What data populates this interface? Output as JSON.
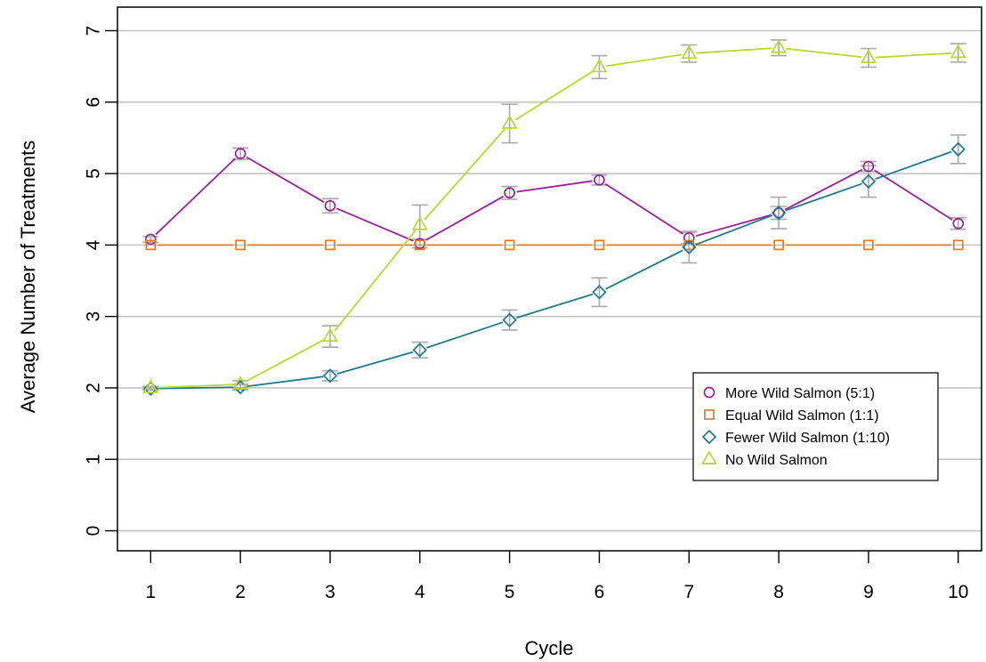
{
  "chart_data": {
    "type": "line",
    "xlabel": "Cycle",
    "ylabel": "Average Number of Treatments",
    "x": [
      1,
      2,
      3,
      4,
      5,
      6,
      7,
      8,
      9,
      10
    ],
    "xlim": [
      0.63,
      10.26
    ],
    "ylim": [
      -0.28,
      7.33
    ],
    "yticks": [
      0,
      1,
      2,
      3,
      4,
      5,
      6,
      7
    ],
    "grid": "horizontal",
    "legend_position": "lower-right",
    "error_bar_color": "#aaaaaa",
    "series": [
      {
        "name": "More Wild Salmon (5:1)",
        "marker": "circle",
        "color": "#9b1f9b",
        "values": [
          4.08,
          5.28,
          4.55,
          4.02,
          4.73,
          4.91,
          4.1,
          4.45,
          5.1,
          4.3
        ],
        "errors": [
          0.04,
          0.08,
          0.1,
          0.06,
          0.09,
          0.07,
          0.08,
          0.09,
          0.07,
          0.08
        ]
      },
      {
        "name": "Equal Wild Salmon (1:1)",
        "marker": "square",
        "color": "#e07b27",
        "values": [
          4,
          4,
          4,
          4,
          4,
          4,
          4,
          4,
          4,
          4
        ],
        "errors": [
          0,
          0,
          0,
          0,
          0,
          0,
          0,
          0,
          0,
          0
        ]
      },
      {
        "name": "Fewer Wild Salmon (1:10)",
        "marker": "diamond",
        "color": "#1e7a8c",
        "values": [
          1.99,
          2.01,
          2.17,
          2.53,
          2.95,
          3.34,
          3.97,
          4.45,
          4.89,
          5.34
        ],
        "errors": [
          0.02,
          0.04,
          0.07,
          0.11,
          0.14,
          0.2,
          0.22,
          0.22,
          0.22,
          0.2
        ]
      },
      {
        "name": "No Wild Salmon",
        "marker": "triangle",
        "color": "#bcd62d",
        "values": [
          2.0,
          2.05,
          2.72,
          4.28,
          5.7,
          6.49,
          6.68,
          6.76,
          6.62,
          6.69
        ],
        "errors": [
          0.02,
          0.05,
          0.15,
          0.28,
          0.27,
          0.16,
          0.12,
          0.11,
          0.13,
          0.13
        ]
      }
    ]
  }
}
